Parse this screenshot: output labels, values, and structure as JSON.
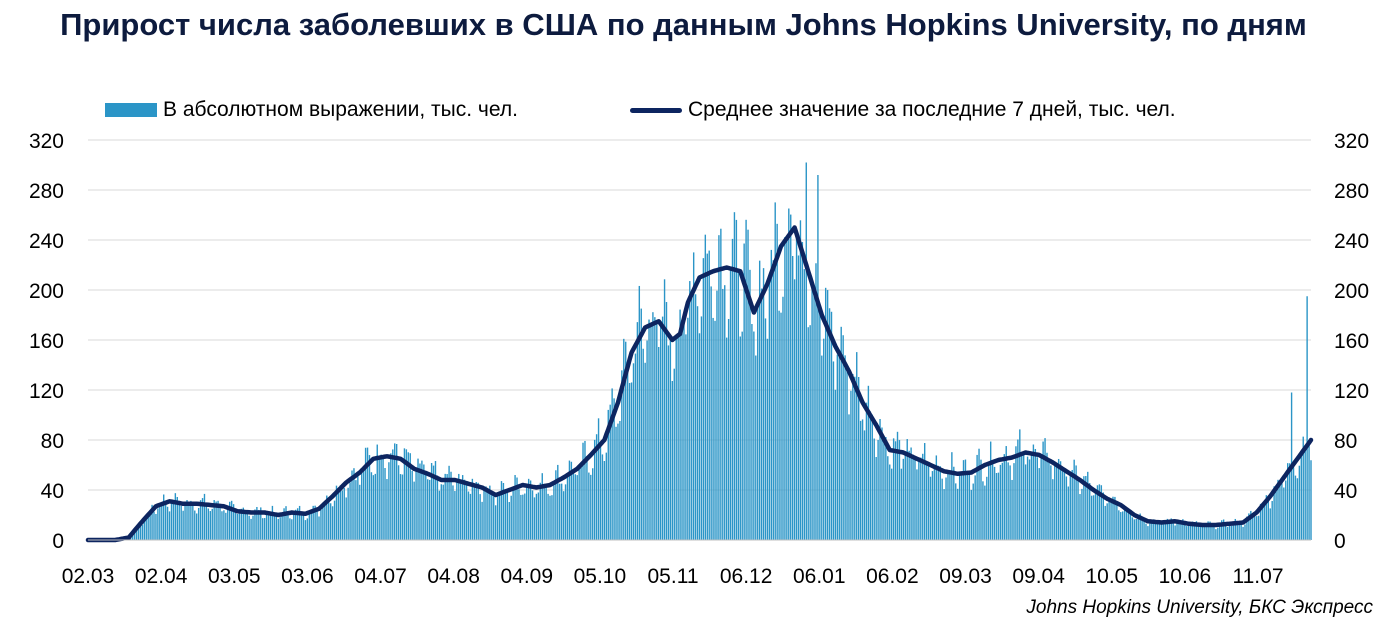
{
  "chart_data": {
    "type": "bar",
    "title": "Прирост числа заболевших в США по данным Johns Hopkins University, по дням",
    "legend": {
      "placement": "top",
      "bars_label": "В абсолютном выражении, тыс. чел.",
      "line_label": "Среднее значение за последние 7 дней, тыс. чел."
    },
    "colors": {
      "bars": "#2b95c7",
      "line": "#0d2560",
      "grid": "#d9d9d9"
    },
    "ylim": [
      0,
      320
    ],
    "yticks": [
      "0",
      "40",
      "80",
      "120",
      "160",
      "200",
      "240",
      "280",
      "320"
    ],
    "secondary_yticks": [
      "0",
      "40",
      "80",
      "120",
      "160",
      "200",
      "240",
      "280",
      "320"
    ],
    "xticks": [
      "02.03",
      "02.04",
      "03.05",
      "03.06",
      "04.07",
      "04.08",
      "04.09",
      "05.10",
      "05.11",
      "06.12",
      "06.01",
      "06.02",
      "09.03",
      "09.04",
      "10.05",
      "10.06",
      "11.07"
    ],
    "grid": true,
    "series": [
      {
        "name": "Среднее значение за последние 7 дней, тыс. чел.",
        "type": "line",
        "x": [
          0,
          14,
          21,
          28,
          35,
          42,
          49,
          56,
          63,
          70,
          77,
          84,
          91,
          98,
          105,
          112,
          119,
          126,
          133,
          140,
          147,
          154,
          161,
          168,
          175,
          182,
          189,
          196,
          203,
          210,
          217,
          224,
          231,
          238,
          245,
          252,
          259,
          266,
          273,
          280,
          287,
          294,
          301,
          305,
          309,
          315,
          322,
          329,
          336,
          343,
          350,
          357,
          364,
          371,
          378,
          385,
          392,
          399,
          406,
          413,
          420,
          427,
          434,
          441,
          448,
          455,
          462,
          469,
          476,
          483,
          490,
          497,
          504,
          511,
          518,
          525,
          532,
          539,
          546,
          553,
          560,
          567,
          574,
          581,
          588,
          595,
          602,
          609,
          616,
          623,
          630
        ],
        "values": [
          0,
          0,
          2,
          15,
          27,
          31,
          29,
          29,
          28,
          27,
          23,
          22,
          22,
          20,
          22,
          21,
          25,
          35,
          46,
          54,
          65,
          67,
          65,
          57,
          53,
          48,
          48,
          45,
          42,
          36,
          40,
          44,
          42,
          44,
          50,
          57,
          68,
          80,
          110,
          150,
          170,
          175,
          160,
          165,
          190,
          210,
          215,
          218,
          215,
          182,
          205,
          235,
          250,
          215,
          180,
          155,
          135,
          110,
          92,
          72,
          70,
          65,
          60,
          55,
          53,
          54,
          60,
          64,
          66,
          70,
          68,
          62,
          55,
          48,
          40,
          33,
          28,
          20,
          15,
          14,
          15,
          13,
          12,
          12,
          13,
          14,
          22,
          35,
          50,
          65,
          80
        ]
      },
      {
        "name": "В абсолютном выражении, тыс. чел.",
        "type": "bar",
        "highlights": {
          "peak_days": [
            [
              370,
              302
            ],
            [
              376,
              292
            ],
            [
              628,
              195
            ],
            [
              620,
              118
            ]
          ]
        }
      }
    ]
  },
  "source": "Johns Hopkins University, БКС Экспресс"
}
